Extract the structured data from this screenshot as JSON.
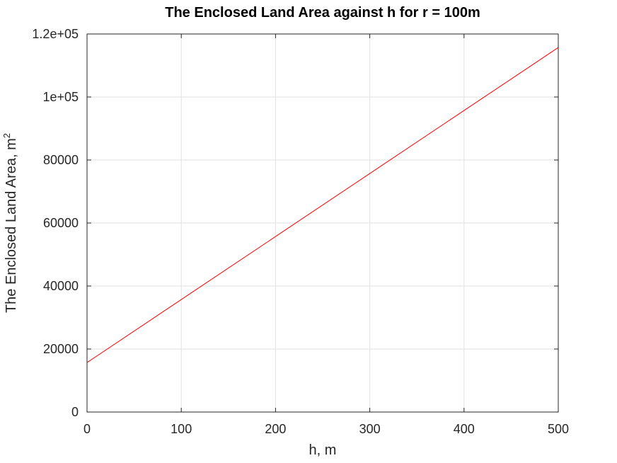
{
  "chart_data": {
    "type": "line",
    "title": "The Enclosed Land Area against h for r = 100m",
    "xlabel": "h, m",
    "ylabel": "The Enclosed Land Area, m",
    "ylabel_superscript": "2",
    "xlim": [
      0,
      500
    ],
    "ylim": [
      0,
      120000
    ],
    "x_ticks": [
      0,
      100,
      200,
      300,
      400,
      500
    ],
    "x_tick_labels": [
      "0",
      "100",
      "200",
      "300",
      "400",
      "500"
    ],
    "y_ticks": [
      0,
      20000,
      40000,
      60000,
      80000,
      100000,
      120000
    ],
    "y_tick_labels": [
      "0",
      "20000",
      "40000",
      "60000",
      "80000",
      "1e+05",
      "1.2e+05"
    ],
    "grid": true,
    "series": [
      {
        "color": "#ff0000",
        "x": [
          0,
          100,
          200,
          300,
          400,
          500
        ],
        "y": [
          15708,
          35708,
          55708,
          75708,
          95708,
          115708
        ]
      }
    ]
  }
}
